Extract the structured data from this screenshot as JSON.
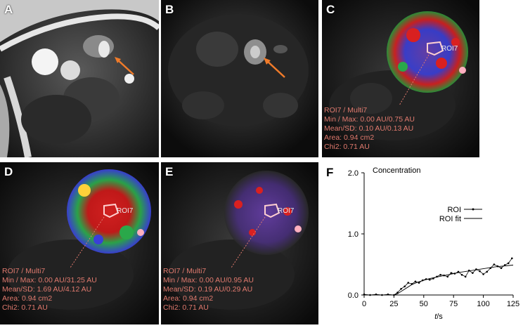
{
  "panels": {
    "A": {
      "label": "A"
    },
    "B": {
      "label": "B"
    },
    "C": {
      "label": "C",
      "roi_tag": "ROI7",
      "stats": [
        "ROI7 / Multi7",
        "Min / Max: 0.00 AU/0.75 AU",
        "Mean/SD: 0.10 AU/0.13 AU",
        "Area: 0.94 cm2",
        "Chi2: 0.71 AU"
      ]
    },
    "D": {
      "label": "D",
      "roi_tag": "ROI7",
      "stats": [
        "ROI7 / Multi7",
        "Min / Max: 0.00 AU/31.25 AU",
        "Mean/SD: 1.69 AU/4.12 AU",
        "Area: 0.94 cm2",
        "Chi2: 0.71 AU"
      ]
    },
    "E": {
      "label": "E",
      "roi_tag": "ROI7",
      "stats": [
        "ROI7 / Multi7",
        "Min / Max: 0.00 AU/0.95 AU",
        "Mean/SD: 0.19 AU/0.29 AU",
        "Area: 0.94 cm2",
        "Chi2: 0.71 AU"
      ]
    },
    "F": {
      "label": "F"
    }
  },
  "chart_data": {
    "type": "line",
    "title": "Concentration",
    "xlabel_italic": "t",
    "xlabel_unit": "/s",
    "xlim": [
      0,
      125
    ],
    "ylim": [
      0,
      2.0
    ],
    "xticks": [
      0,
      25,
      50,
      75,
      100,
      125
    ],
    "yticks": [
      "0.0",
      "1.0",
      "2.0"
    ],
    "legend": [
      "ROI",
      "ROI fit"
    ],
    "legend_position": "right",
    "series": [
      {
        "name": "ROI",
        "x": [
          0,
          5,
          10,
          15,
          20,
          25,
          28,
          31,
          34,
          37,
          40,
          43,
          46,
          49,
          52,
          55,
          58,
          61,
          64,
          67,
          70,
          73,
          76,
          79,
          82,
          85,
          88,
          91,
          94,
          97,
          100,
          103,
          106,
          109,
          112,
          115,
          118,
          121,
          124
        ],
        "y": [
          0.01,
          0.0,
          0.01,
          0.0,
          0.01,
          0.0,
          0.04,
          0.1,
          0.14,
          0.2,
          0.18,
          0.22,
          0.2,
          0.24,
          0.26,
          0.25,
          0.27,
          0.3,
          0.33,
          0.32,
          0.3,
          0.36,
          0.35,
          0.38,
          0.33,
          0.3,
          0.4,
          0.36,
          0.42,
          0.39,
          0.34,
          0.38,
          0.44,
          0.5,
          0.47,
          0.44,
          0.49,
          0.52,
          0.6
        ]
      },
      {
        "name": "ROI fit",
        "x": [
          0,
          25,
          28,
          32,
          36,
          40,
          45,
          50,
          55,
          60,
          70,
          80,
          90,
          100,
          110,
          120,
          125
        ],
        "y": [
          0.0,
          0.0,
          0.02,
          0.07,
          0.12,
          0.17,
          0.21,
          0.24,
          0.27,
          0.29,
          0.33,
          0.37,
          0.4,
          0.43,
          0.46,
          0.48,
          0.49
        ]
      }
    ],
    "baseline_dotted": 0.0
  }
}
